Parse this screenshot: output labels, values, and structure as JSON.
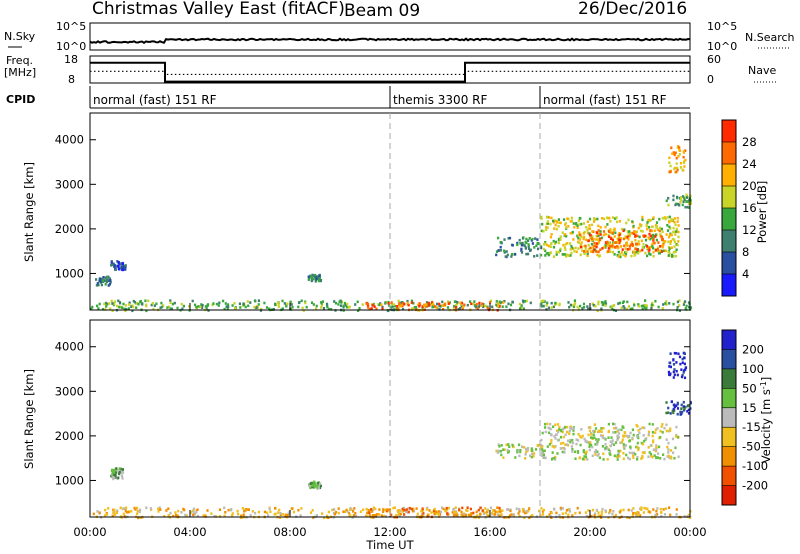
{
  "header": {
    "title": "Christmas Valley East (fitACF)",
    "beam": "Beam 09",
    "date": "26/Dec/2016"
  },
  "chart_data": [
    {
      "type": "line",
      "panel": "noise",
      "left_label": "N.Sky",
      "right_label": "N.Search",
      "left_ticks": [
        "10^5",
        "10^0"
      ],
      "right_ticks": [
        "10^5",
        "10^0"
      ]
    },
    {
      "type": "line",
      "panel": "frequency",
      "left_label_top": "Freq.",
      "left_label_bottom": "[MHz]",
      "right_label": "Nave",
      "left_ticks": [
        "18",
        "8"
      ],
      "right_ticks": [
        "60",
        "0"
      ],
      "frequency_mhz": [
        {
          "from_h": 0,
          "to_h": 3,
          "value": 15.5
        },
        {
          "from_h": 3,
          "to_h": 15,
          "value": 8.5
        },
        {
          "from_h": 15,
          "to_h": 24,
          "value": 15.5
        }
      ],
      "nave": [
        {
          "from_h": 0,
          "to_h": 3,
          "value": 26
        },
        {
          "from_h": 3,
          "to_h": 15,
          "value": 19
        },
        {
          "from_h": 15,
          "to_h": 24,
          "value": 26
        }
      ]
    },
    {
      "type": "table",
      "panel": "cpid",
      "label": "CPID",
      "modes": [
        {
          "from_h": 0,
          "to_h": 12,
          "name": "normal (fast) 151 RF"
        },
        {
          "from_h": 12,
          "to_h": 18,
          "name": "themis 3300 RF"
        },
        {
          "from_h": 18,
          "to_h": 24,
          "name": "normal (fast) 151 RF"
        }
      ]
    },
    {
      "type": "heatmap",
      "panel": "power",
      "ylabel": "Slant Range [km]",
      "yticks": [
        "4000",
        "3000",
        "2000",
        "1000"
      ],
      "ylim": [
        180,
        4600
      ],
      "colorbar_label": "Power [dB]",
      "colorbar_ticks": [
        "28",
        "24",
        "20",
        "16",
        "12",
        "8",
        "4"
      ],
      "colors": [
        "#1a1aff",
        "#2a4ea0",
        "#3f7f6f",
        "#39a83c",
        "#c8d428",
        "#ffb000",
        "#ff6a00",
        "#ff2a00"
      ],
      "echo_regions": [
        {
          "t0": 0.0,
          "t1": 24.0,
          "r0": 190,
          "r1": 420,
          "level": 3
        },
        {
          "t0": 11.0,
          "t1": 16.5,
          "r0": 200,
          "r1": 380,
          "level": 6
        },
        {
          "t0": 0.2,
          "t1": 0.8,
          "r0": 750,
          "r1": 950,
          "level": 2
        },
        {
          "t0": 0.8,
          "t1": 1.4,
          "r0": 1100,
          "r1": 1300,
          "level": 1
        },
        {
          "t0": 8.7,
          "t1": 9.2,
          "r0": 850,
          "r1": 1000,
          "level": 2
        },
        {
          "t0": 16.2,
          "t1": 18.0,
          "r0": 1400,
          "r1": 1850,
          "level": 2
        },
        {
          "t0": 18.0,
          "t1": 23.5,
          "r0": 1400,
          "r1": 2300,
          "level": 4
        },
        {
          "t0": 19.5,
          "t1": 23.0,
          "r0": 1500,
          "r1": 2000,
          "level": 6
        },
        {
          "t0": 23.0,
          "t1": 24.0,
          "r0": 2500,
          "r1": 2800,
          "level": 3
        },
        {
          "t0": 23.1,
          "t1": 23.8,
          "r0": 3300,
          "r1": 3900,
          "level": 5
        }
      ]
    },
    {
      "type": "heatmap",
      "panel": "velocity",
      "xlabel": "Time UT",
      "ylabel": "Slant Range [km]",
      "yticks": [
        "4000",
        "3000",
        "2000",
        "1000"
      ],
      "ylim": [
        180,
        4600
      ],
      "xticks": [
        "00:00",
        "04:00",
        "08:00",
        "12:00",
        "16:00",
        "20:00",
        "00:00"
      ],
      "colorbar_label": "Velocity [m s",
      "colorbar_label_sup": "-1",
      "colorbar_label_end": "]",
      "colorbar_ticks": [
        "200",
        "100",
        "50",
        "15",
        "-15",
        "-50",
        "-100",
        "-200"
      ],
      "colors": [
        "#2222cc",
        "#2a4ea0",
        "#3a7a3a",
        "#66c040",
        "#bbbbbb",
        "#f0c020",
        "#f09000",
        "#f05000",
        "#e02000"
      ],
      "echo_regions": [
        {
          "t0": 0.0,
          "t1": 24.0,
          "r0": 190,
          "r1": 420,
          "level": 5
        },
        {
          "t0": 11.0,
          "t1": 16.5,
          "r0": 200,
          "r1": 420,
          "level": 6
        },
        {
          "t0": 0.8,
          "t1": 1.3,
          "r0": 1050,
          "r1": 1300,
          "level": 3
        },
        {
          "t0": 8.7,
          "t1": 9.2,
          "r0": 850,
          "r1": 1000,
          "level": 3
        },
        {
          "t0": 16.2,
          "t1": 18.0,
          "r0": 1500,
          "r1": 1850,
          "level": 4
        },
        {
          "t0": 18.0,
          "t1": 23.5,
          "r0": 1500,
          "r1": 2300,
          "level": 4
        },
        {
          "t0": 23.1,
          "t1": 23.8,
          "r0": 3300,
          "r1": 3900,
          "level": 0
        },
        {
          "t0": 23.0,
          "t1": 24.0,
          "r0": 2500,
          "r1": 2800,
          "level": 1
        }
      ]
    }
  ]
}
